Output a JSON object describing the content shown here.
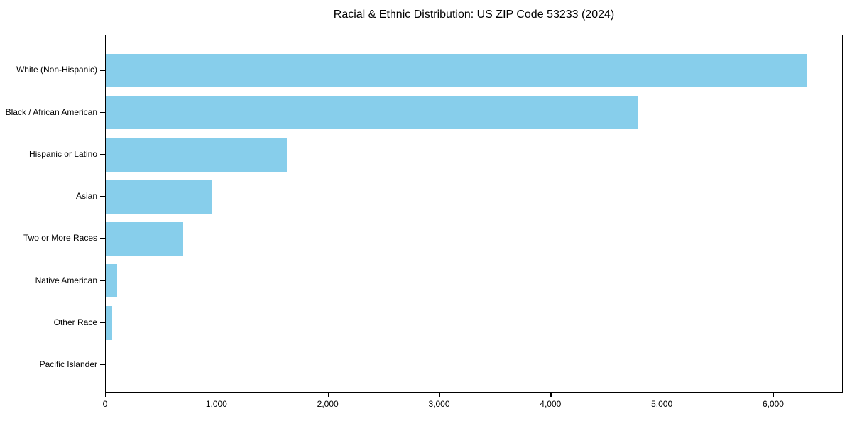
{
  "figure": {
    "background": "#ffffff"
  },
  "chart_data": {
    "type": "bar",
    "orientation": "horizontal",
    "title": "Racial & Ethnic Distribution: US ZIP Code 53233 (2024)",
    "categories": [
      "White (Non-Hispanic)",
      "Black / African American",
      "Hispanic or Latino",
      "Asian",
      "Two or More Races",
      "Native American",
      "Other Race",
      "Pacific Islander"
    ],
    "values": [
      6300,
      4780,
      1625,
      955,
      695,
      105,
      55,
      0
    ],
    "xlabel": "",
    "ylabel": "",
    "xlim": [
      0,
      6625
    ],
    "xticks": [
      {
        "value": 0,
        "label": "0"
      },
      {
        "value": 1000,
        "label": "1,000"
      },
      {
        "value": 2000,
        "label": "2,000"
      },
      {
        "value": 3000,
        "label": "3,000"
      },
      {
        "value": 4000,
        "label": "4,000"
      },
      {
        "value": 5000,
        "label": "5,000"
      },
      {
        "value": 6000,
        "label": "6,000"
      }
    ],
    "bar_color": "#87CEEB",
    "axis_color": "#000000",
    "text_color": "#000000",
    "grid": false,
    "legend": "none"
  }
}
